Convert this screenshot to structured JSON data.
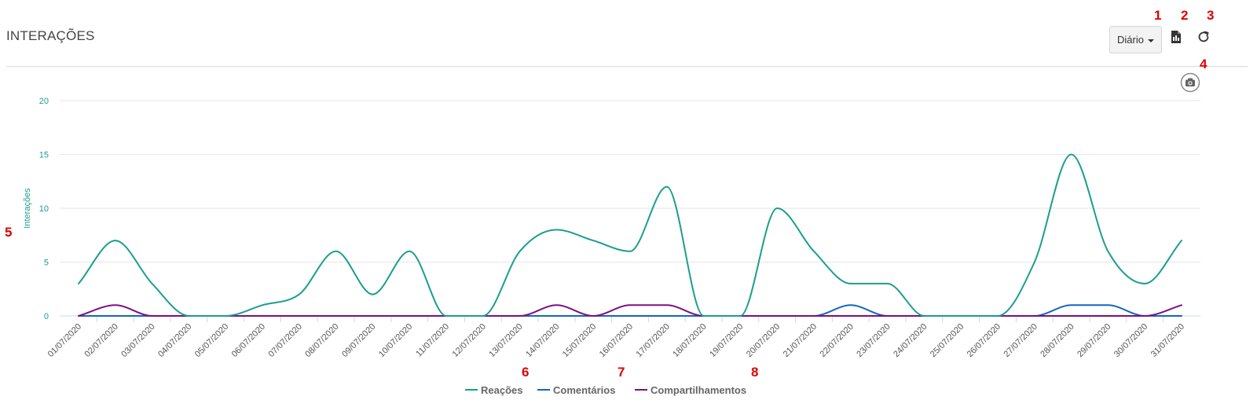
{
  "header": {
    "title": "INTERAÇÕES",
    "period_label": "Diário"
  },
  "annotations": [
    "1",
    "2",
    "3",
    "4",
    "5",
    "6",
    "7",
    "8"
  ],
  "icons": {
    "export": "pdf-icon",
    "refresh": "refresh-icon",
    "screenshot": "camera-icon"
  },
  "colors": {
    "reacoes": "#1a9e8f",
    "comentarios": "#1565c0",
    "compartilhamentos": "#7b1080",
    "axis_text": "#1a9e8f",
    "marker": "#e00000"
  },
  "chart_data": {
    "type": "line",
    "ylabel": "Interações",
    "ylim": [
      0,
      20
    ],
    "yticks": [
      0,
      5,
      10,
      15,
      20
    ],
    "grid": true,
    "legend_position": "bottom",
    "categories": [
      "01/07/2020",
      "02/07/2020",
      "03/07/2020",
      "04/07/2020",
      "05/07/2020",
      "06/07/2020",
      "07/07/2020",
      "08/07/2020",
      "09/07/2020",
      "10/07/2020",
      "11/07/2020",
      "12/07/2020",
      "13/07/2020",
      "14/07/2020",
      "15/07/2020",
      "16/07/2020",
      "17/07/2020",
      "18/07/2020",
      "19/07/2020",
      "20/07/2020",
      "21/07/2020",
      "22/07/2020",
      "23/07/2020",
      "24/07/2020",
      "25/07/2020",
      "26/07/2020",
      "27/07/2020",
      "28/07/2020",
      "29/07/2020",
      "30/07/2020",
      "31/07/2020"
    ],
    "series": [
      {
        "name": "Reações",
        "values": [
          3,
          7,
          3,
          0,
          0,
          1,
          2,
          6,
          2,
          6,
          0,
          0,
          6,
          8,
          7,
          6,
          12,
          0,
          0,
          10,
          6,
          3,
          3,
          0,
          0,
          0,
          5,
          15,
          6,
          3,
          7
        ]
      },
      {
        "name": "Comentários",
        "values": [
          0,
          0,
          0,
          0,
          0,
          0,
          0,
          0,
          0,
          0,
          0,
          0,
          0,
          0,
          0,
          0,
          0,
          0,
          0,
          0,
          0,
          1,
          0,
          0,
          0,
          0,
          0,
          1,
          1,
          0,
          0
        ]
      },
      {
        "name": "Compartilhamentos",
        "values": [
          0,
          1,
          0,
          0,
          0,
          0,
          0,
          0,
          0,
          0,
          0,
          0,
          0,
          1,
          0,
          1,
          1,
          0,
          0,
          0,
          0,
          0,
          0,
          0,
          0,
          0,
          0,
          0,
          0,
          0,
          1
        ]
      }
    ]
  }
}
